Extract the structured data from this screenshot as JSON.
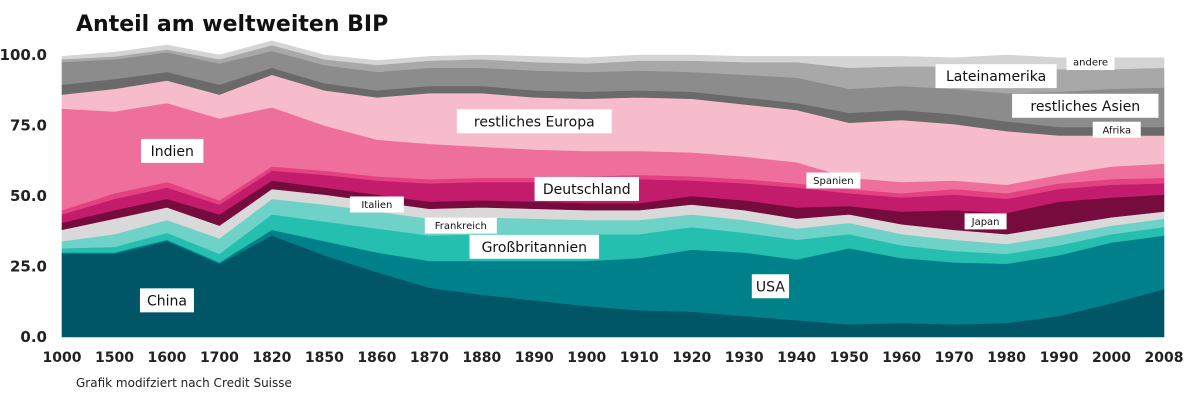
{
  "chart_data": {
    "type": "area",
    "stacked": true,
    "title": "Anteil am weltweiten BIP",
    "source_note": "Grafik modifziert nach Credit Suisse",
    "x": [
      1000,
      1500,
      1600,
      1700,
      1820,
      1850,
      1860,
      1870,
      1880,
      1890,
      1900,
      1910,
      1920,
      1930,
      1940,
      1950,
      1960,
      1970,
      1980,
      1990,
      2000,
      2008
    ],
    "x_tick_labels": [
      "1000",
      "1500",
      "1600",
      "1700",
      "1820",
      "1850",
      "1860",
      "1870",
      "1880",
      "1890",
      "1900",
      "1910",
      "1920",
      "1930",
      "1940",
      "1950",
      "1960",
      "1970",
      "1980",
      "1990",
      "2000",
      "2008"
    ],
    "y_tick_labels": [
      "100.0",
      "75.0",
      "50.0",
      "25.0",
      "0.0"
    ],
    "y_ticks": [
      100,
      75,
      50,
      25,
      0
    ],
    "ylim": [
      0,
      100
    ],
    "series": [
      {
        "name": "China",
        "color": "#005566",
        "values": [
          29.5,
          29.5,
          34,
          26,
          36,
          29,
          23,
          17.5,
          15,
          13,
          11,
          9.5,
          9,
          7.5,
          6,
          4.5,
          5,
          4.5,
          5,
          7.5,
          12,
          17
        ]
      },
      {
        "name": "USA",
        "color": "#00808a",
        "values": [
          0.5,
          0.5,
          0.5,
          0.5,
          2,
          5,
          7,
          9.5,
          12,
          14,
          16,
          18.5,
          22,
          22.5,
          21.5,
          27,
          23,
          22,
          21,
          21.5,
          21.5,
          19
        ]
      },
      {
        "name": "Großbritannien",
        "color": "#25bfaf",
        "values": [
          1.5,
          2,
          2.5,
          3,
          5.5,
          7,
          8.5,
          9,
          9.5,
          9.5,
          9.5,
          8.5,
          8,
          7,
          7,
          5,
          4.5,
          4,
          3.5,
          3.5,
          3,
          3
        ]
      },
      {
        "name": "Frankreich",
        "color": "#6fd2c8",
        "values": [
          2.5,
          4.5,
          4.5,
          5.5,
          5.5,
          6,
          6,
          6,
          6,
          5.5,
          5,
          5,
          4.5,
          4.5,
          4,
          4,
          4,
          4,
          3.5,
          3.5,
          3,
          3
        ]
      },
      {
        "name": "Italien",
        "color": "#d9d9d9",
        "values": [
          4,
          5.5,
          4.5,
          4.5,
          3.5,
          3.5,
          3.5,
          3.5,
          3.5,
          3.5,
          3.5,
          3.5,
          3.5,
          3.5,
          3.5,
          3,
          3.5,
          3.5,
          3.5,
          3.5,
          3,
          2.5
        ]
      },
      {
        "name": "Japan",
        "color": "#760c3e",
        "values": [
          2.5,
          3,
          3,
          4,
          3,
          2.5,
          2.5,
          2.5,
          2.5,
          2.5,
          2.5,
          2.5,
          3,
          3.5,
          4,
          3,
          4.5,
          7,
          7.5,
          8.5,
          7,
          6
        ]
      },
      {
        "name": "Deutschland",
        "color": "#c41c6c",
        "values": [
          3,
          4,
          4,
          3.5,
          3.5,
          4.5,
          5,
          6.5,
          6.5,
          7,
          8,
          8.5,
          5.5,
          6,
          7,
          4.5,
          5,
          5.5,
          5,
          4.5,
          4.5,
          4
        ]
      },
      {
        "name": "Spanien",
        "color": "#e3417f",
        "values": [
          1.5,
          2,
          2,
          1.5,
          1.5,
          1.5,
          1.5,
          1.5,
          1.5,
          1.5,
          1.5,
          1.5,
          1.5,
          1.5,
          1.5,
          1.5,
          1.5,
          2,
          2,
          2,
          2,
          2
        ]
      },
      {
        "name": "Indien",
        "color": "#ef6f9c",
        "values": [
          36,
          29,
          28,
          29,
          21,
          16,
          13,
          12.5,
          11,
          10,
          9,
          8.5,
          8.5,
          8,
          7.5,
          4,
          4,
          3,
          3,
          3,
          4.5,
          5
        ]
      },
      {
        "name": "restliches Europa",
        "color": "#f7bccc",
        "values": [
          5,
          8,
          8,
          8.5,
          11.5,
          12.5,
          15,
          18,
          19,
          18.5,
          18.5,
          19,
          19,
          18.5,
          18.5,
          19.5,
          22,
          20,
          19,
          14,
          11,
          10
        ]
      },
      {
        "name": "Afrika",
        "color": "#6a6a6a",
        "values": [
          3.5,
          3.5,
          3,
          3.5,
          2.5,
          2.5,
          2.5,
          2.5,
          2.5,
          2.5,
          2.5,
          2.5,
          2.5,
          2.5,
          2.5,
          3.5,
          3.5,
          3.5,
          3.5,
          3,
          3,
          3
        ]
      },
      {
        "name": "restliches Asien",
        "color": "#8c8c8c",
        "values": [
          8,
          7,
          7,
          7.5,
          6,
          6.5,
          6.5,
          6.5,
          6.5,
          7,
          7,
          7,
          7,
          8,
          9,
          8.5,
          8.5,
          9,
          10,
          12.5,
          13.5,
          14
        ]
      },
      {
        "name": "Lateinamerika",
        "color": "#a8a8a8",
        "values": [
          1,
          1,
          1,
          1.5,
          2,
          2,
          2.5,
          2.5,
          3,
          3,
          3,
          3.5,
          4,
          4.5,
          5.5,
          7.5,
          7,
          8,
          10,
          8,
          7,
          7
        ]
      },
      {
        "name": "andere",
        "color": "#d4d4d4",
        "values": [
          1,
          1.5,
          1.5,
          1.5,
          1.5,
          1.5,
          1.5,
          1.5,
          1.5,
          2,
          2,
          2,
          2,
          2,
          2,
          4,
          3.5,
          3,
          3.5,
          4,
          4,
          3.5
        ]
      }
    ],
    "annotations": [
      "China",
      "USA",
      "Großbritannien",
      "Frankreich",
      "Italien",
      "Japan",
      "Deutschland",
      "Spanien",
      "Indien",
      "restliches Europa",
      "Afrika",
      "restliches Asien",
      "Lateinamerika",
      "andere"
    ]
  }
}
